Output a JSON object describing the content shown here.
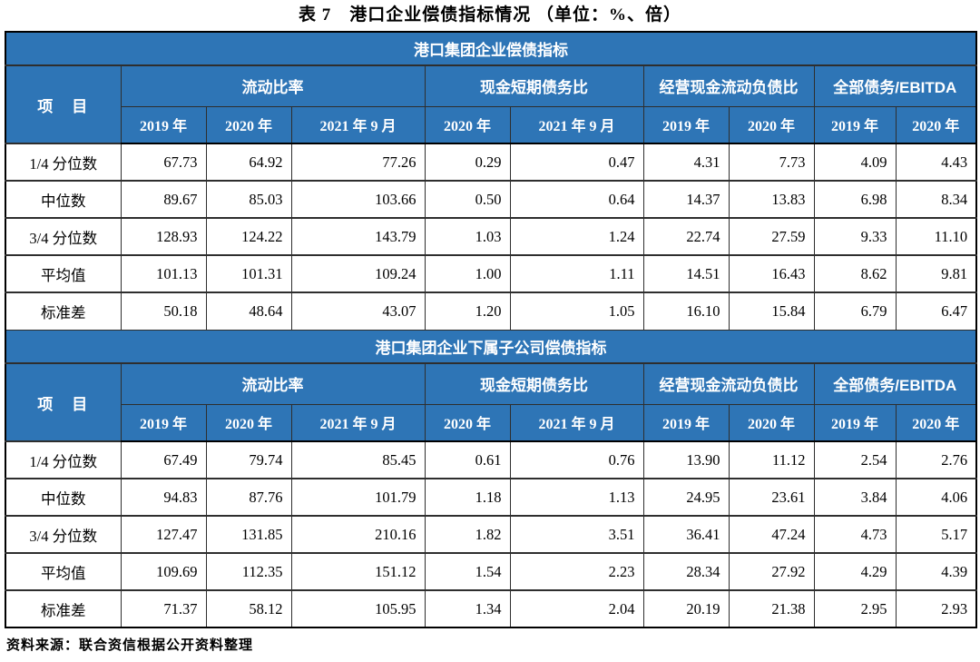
{
  "title": "表 7　港口企业偿债指标情况 （单位：%、倍）",
  "item_header": "项　目",
  "column_groups": [
    {
      "label": "流动比率",
      "span": 3
    },
    {
      "label": "现金短期债务比",
      "span": 2
    },
    {
      "label": "经营现金流动负债比",
      "span": 2
    },
    {
      "label": "全部债务/EBITDA",
      "span": 2
    }
  ],
  "year_headers": [
    "2019 年",
    "2020 年",
    "2021 年 9 月",
    "2020 年",
    "2021 年 9 月",
    "2019 年",
    "2020 年",
    "2019 年",
    "2020 年"
  ],
  "sections": [
    {
      "title": "港口集团企业偿债指标",
      "rows": [
        {
          "label": "1/4 分位数",
          "values": [
            "67.73",
            "64.92",
            "77.26",
            "0.29",
            "0.47",
            "4.31",
            "7.73",
            "4.09",
            "4.43"
          ]
        },
        {
          "label": "中位数",
          "values": [
            "89.67",
            "85.03",
            "103.66",
            "0.50",
            "0.64",
            "14.37",
            "13.83",
            "6.98",
            "8.34"
          ]
        },
        {
          "label": "3/4 分位数",
          "values": [
            "128.93",
            "124.22",
            "143.79",
            "1.03",
            "1.24",
            "22.74",
            "27.59",
            "9.33",
            "11.10"
          ]
        },
        {
          "label": "平均值",
          "values": [
            "101.13",
            "101.31",
            "109.24",
            "1.00",
            "1.11",
            "14.51",
            "16.43",
            "8.62",
            "9.81"
          ]
        },
        {
          "label": "标准差",
          "values": [
            "50.18",
            "48.64",
            "43.07",
            "1.20",
            "1.05",
            "16.10",
            "15.84",
            "6.79",
            "6.47"
          ]
        }
      ]
    },
    {
      "title": "港口集团企业下属子公司偿债指标",
      "rows": [
        {
          "label": "1/4 分位数",
          "values": [
            "67.49",
            "79.74",
            "85.45",
            "0.61",
            "0.76",
            "13.90",
            "11.12",
            "2.54",
            "2.76"
          ]
        },
        {
          "label": "中位数",
          "values": [
            "94.83",
            "87.76",
            "101.79",
            "1.18",
            "1.13",
            "24.95",
            "23.61",
            "3.84",
            "4.06"
          ]
        },
        {
          "label": "3/4 分位数",
          "values": [
            "127.47",
            "131.85",
            "210.16",
            "1.82",
            "3.51",
            "36.41",
            "47.24",
            "4.73",
            "5.17"
          ]
        },
        {
          "label": "平均值",
          "values": [
            "109.69",
            "112.35",
            "151.12",
            "1.54",
            "2.23",
            "28.34",
            "27.92",
            "4.29",
            "4.39"
          ]
        },
        {
          "label": "标准差",
          "values": [
            "71.37",
            "58.12",
            "105.95",
            "1.34",
            "2.04",
            "20.19",
            "21.38",
            "2.95",
            "2.93"
          ]
        }
      ]
    }
  ],
  "source_note": "资料来源：联合资信根据公开资料整理",
  "colors": {
    "header_blue": "#2E75B6",
    "header_text": "#FFFFFF",
    "grid_border": "#2E2E2E",
    "outer_border": "#000000"
  }
}
